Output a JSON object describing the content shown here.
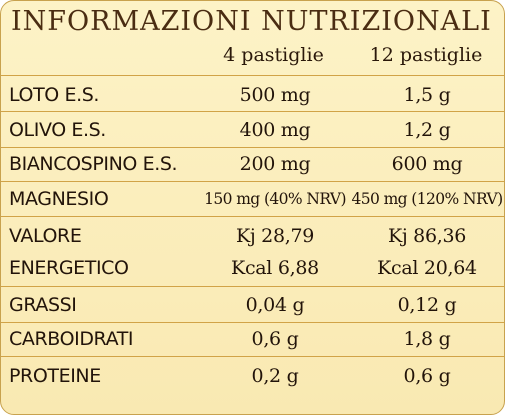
{
  "title": "INFORMAZIONI NUTRIZIONALI",
  "columns": [
    "4 pastiglie",
    "12 pastiglie"
  ],
  "rows": [
    {
      "name": "LOTO E.S.",
      "v4": "500 mg",
      "v12": "1,5 g"
    },
    {
      "name": "OLIVO E.S.",
      "v4": "400 mg",
      "v12": "1,2 g"
    },
    {
      "name": "BIANCOSPINO E.S.",
      "v4": "200 mg",
      "v12": "600 mg"
    },
    {
      "name": "MAGNESIO",
      "v4": "150 mg (40% NRV)",
      "v12": "450 mg (120% NRV)"
    },
    {
      "name": "VALORE",
      "v4": "Kj 28,79",
      "v12": "Kj 86,36"
    },
    {
      "name": "ENERGETICO",
      "v4": "Kcal 6,88",
      "v12": "Kcal 20,64"
    },
    {
      "name": "GRASSI",
      "v4": "0,04 g",
      "v12": "0,12 g"
    },
    {
      "name": "CARBOIDRATI",
      "v4": "0,6 g",
      "v12": "1,8 g"
    },
    {
      "name": "PROTEINE",
      "v4": "0,2 g",
      "v12": "0,6 g"
    }
  ],
  "colors": {
    "background": "#fbeebd",
    "border": "#c8a24e",
    "title_text": "#4a2c12",
    "text": "#22140a"
  }
}
